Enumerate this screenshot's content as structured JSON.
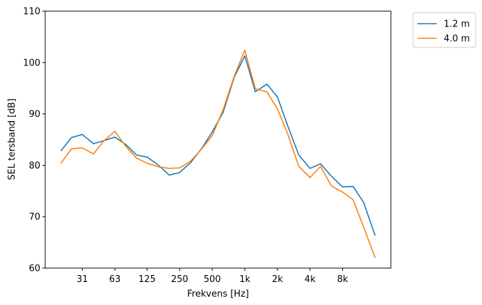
{
  "chart_data": {
    "type": "line",
    "title": "",
    "xlabel": "Frekvens [Hz]",
    "ylabel": "SEL tersband [dB]",
    "ylim": [
      60,
      110
    ],
    "yticks": [
      60,
      70,
      80,
      90,
      100,
      110
    ],
    "x_scale": "log",
    "xtick_values": [
      31.5,
      63,
      125,
      250,
      500,
      1000,
      2000,
      4000,
      8000
    ],
    "xtick_labels": [
      "31",
      "63",
      "125",
      "250",
      "500",
      "1k",
      "2k",
      "4k",
      "8k"
    ],
    "x": [
      20,
      25,
      31.5,
      40,
      50,
      63,
      80,
      100,
      125,
      160,
      200,
      250,
      315,
      400,
      500,
      630,
      800,
      1000,
      1250,
      1600,
      2000,
      2500,
      3150,
      4000,
      5000,
      6300,
      8000,
      10000,
      12500,
      16000
    ],
    "legend_position": "outside-top-right",
    "grid": false,
    "series": [
      {
        "name": "1.2 m",
        "color": "#1f77b4",
        "values": [
          82.8,
          85.4,
          86.0,
          84.2,
          84.8,
          85.5,
          84.0,
          82.0,
          81.6,
          80.0,
          78.1,
          78.6,
          80.5,
          83.3,
          86.5,
          90.3,
          97.2,
          101.3,
          94.3,
          95.8,
          93.3,
          87.6,
          82.0,
          79.4,
          80.3,
          77.9,
          75.8,
          75.9,
          72.8,
          66.3
        ]
      },
      {
        "name": "4.0 m",
        "color": "#ff7f0e",
        "values": [
          80.4,
          83.2,
          83.4,
          82.2,
          84.8,
          86.6,
          83.6,
          81.4,
          80.4,
          79.7,
          79.4,
          79.5,
          80.8,
          83.2,
          85.8,
          90.8,
          97.4,
          102.4,
          94.9,
          94.3,
          91.0,
          86.0,
          79.8,
          77.6,
          79.8,
          76.0,
          74.8,
          73.3,
          68.0,
          62.0
        ]
      }
    ]
  }
}
